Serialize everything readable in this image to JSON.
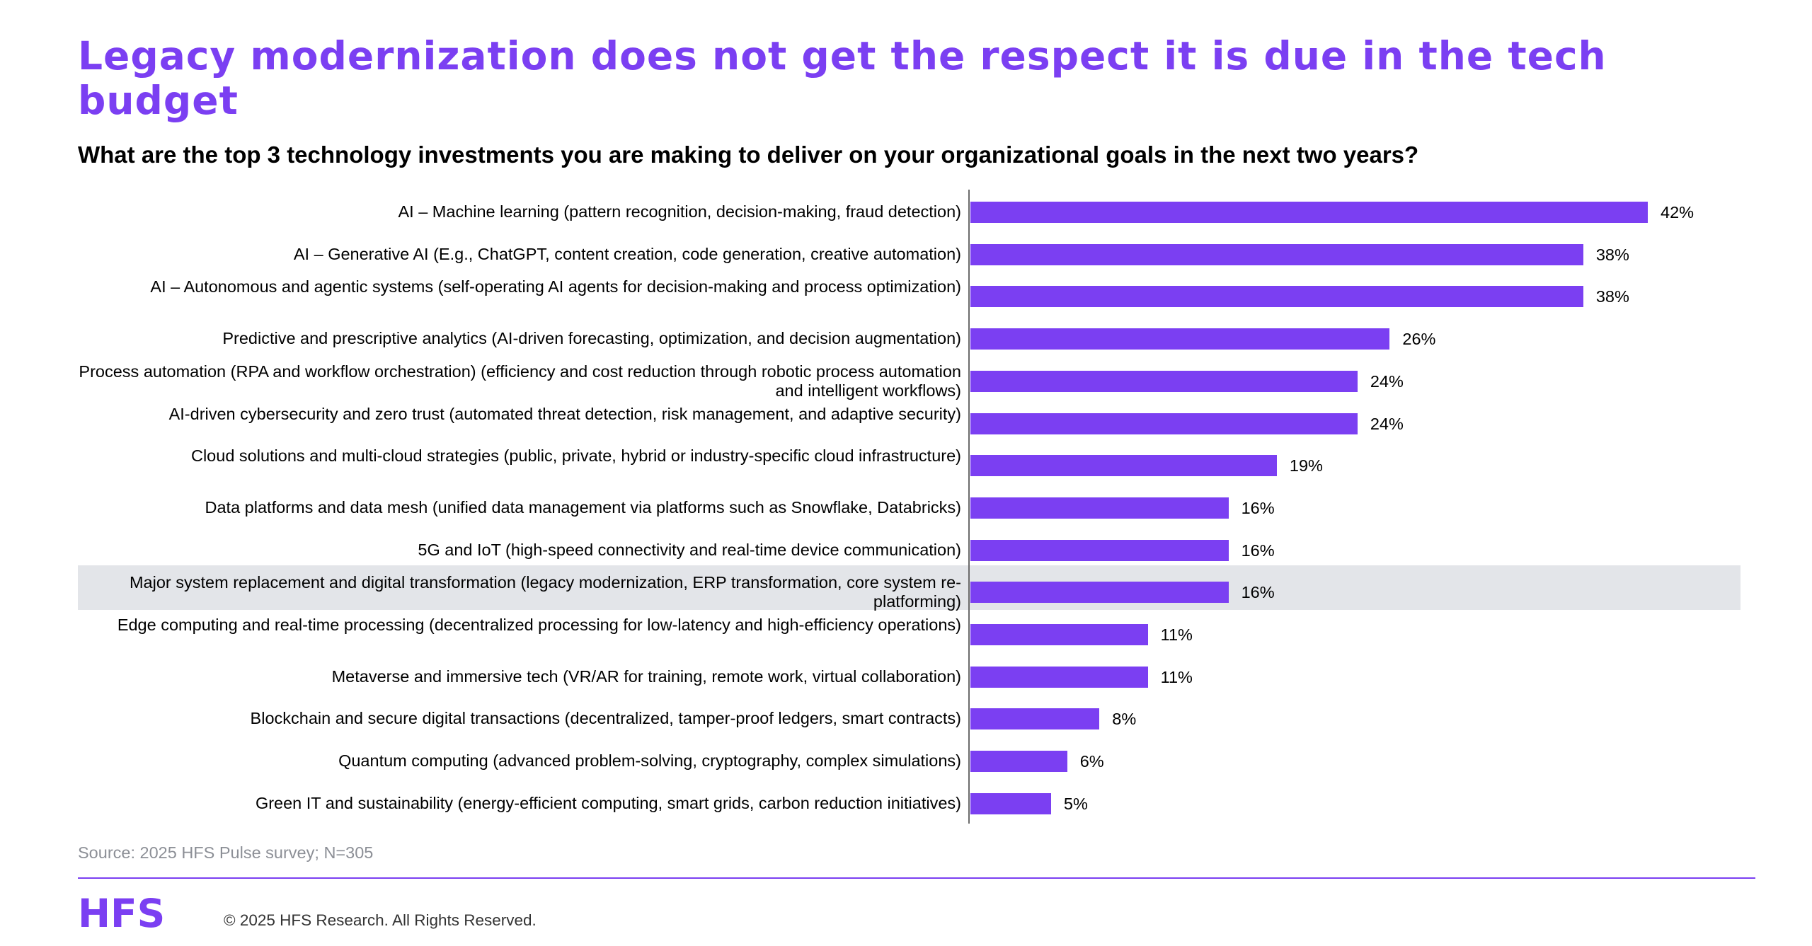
{
  "header": {
    "title": "Legacy modernization does not get the respect it is due in the tech budget",
    "subtitle": "What are the top 3 technology investments you are making to deliver on your organizational goals in the next two years?"
  },
  "colors": {
    "accent": "#7b3ff2",
    "highlight": "#e3e5e9",
    "source_text": "#8c8f96"
  },
  "chart_data": {
    "type": "bar",
    "orientation": "horizontal",
    "xlim": [
      0,
      42
    ],
    "grid": false,
    "highlighted_category": "Major system replacement and digital transformation (legacy modernization, ERP transformation, core system re-platforming)",
    "categories": [
      "AI – Machine learning (pattern recognition, decision-making, fraud detection)",
      "AI – Generative AI (E.g., ChatGPT, content creation, code generation, creative automation)",
      "AI – Autonomous and agentic systems (self-operating AI agents for decision-making and process optimization)",
      "Predictive and prescriptive analytics (AI-driven forecasting, optimization, and decision augmentation)",
      "Process automation (RPA and workflow orchestration) (efficiency and cost reduction through robotic process automation and intelligent workflows)",
      "AI-driven cybersecurity and zero trust (automated threat detection, risk management, and adaptive security)",
      "Cloud solutions and multi-cloud strategies (public, private, hybrid or industry-specific cloud infrastructure)",
      "Data platforms and data mesh (unified data management via platforms such as Snowflake, Databricks)",
      "5G and IoT (high-speed connectivity and real-time device communication)",
      "Major system replacement and digital transformation (legacy modernization, ERP transformation, core system re-platforming)",
      "Edge computing and real-time processing (decentralized processing for low-latency and high-efficiency operations)",
      "Metaverse and immersive tech (VR/AR for training, remote work, virtual collaboration)",
      "Blockchain and secure digital transactions (decentralized, tamper-proof ledgers, smart contracts)",
      "Quantum computing (advanced problem-solving, cryptography, complex simulations)",
      "Green IT and sustainability (energy-efficient computing, smart grids, carbon reduction initiatives)"
    ],
    "values": [
      42,
      38,
      38,
      26,
      24,
      24,
      19,
      16,
      16,
      16,
      11,
      11,
      8,
      6,
      5
    ],
    "value_labels": [
      "42%",
      "38%",
      "38%",
      "26%",
      "24%",
      "24%",
      "19%",
      "16%",
      "16%",
      "16%",
      "11%",
      "11%",
      "8%",
      "6%",
      "5%"
    ]
  },
  "footer": {
    "source": "Source: 2025 HFS Pulse survey; N=305",
    "logo_text": "HFS",
    "copyright": "© 2025 HFS Research. All Rights Reserved."
  }
}
